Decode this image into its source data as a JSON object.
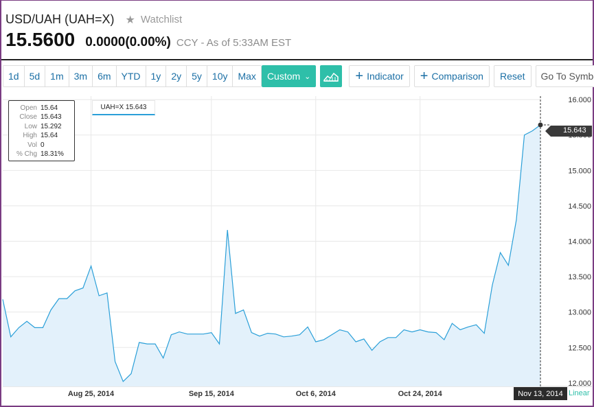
{
  "header": {
    "symbol_title": "USD/UAH (UAH=X)",
    "watchlist_label": "Watchlist",
    "price": "15.5600",
    "change": "0.0000",
    "change_pct": "(0.00%)",
    "asof": "CCY - As of 5:33AM EST",
    "star_icon": "star-icon"
  },
  "toolbar": {
    "ranges": [
      "1d",
      "5d",
      "1m",
      "3m",
      "6m",
      "YTD",
      "1y",
      "2y",
      "5y",
      "10y",
      "Max"
    ],
    "custom_label": "Custom",
    "indicator_label": "Indicator",
    "comparison_label": "Comparison",
    "reset_label": "Reset",
    "symbol_placeholder": "Go To Symbol",
    "chart_type_icon": "mountain-chart-icon",
    "go_icon": "arrow-right-icon",
    "accent": "#2ebfa9"
  },
  "tooltip": {
    "rows": [
      {
        "label": "Open",
        "value": "15.64"
      },
      {
        "label": "Close",
        "value": "15.643"
      },
      {
        "label": "Low",
        "value": "15.292"
      },
      {
        "label": "High",
        "value": "15.64"
      },
      {
        "label": "Vol",
        "value": "0"
      },
      {
        "label": "% Chg",
        "value": "18.31%"
      }
    ]
  },
  "legend_tag": "UAH=X 15.643",
  "crosshair": {
    "date": "Nov 13, 2014",
    "price": "15.643"
  },
  "scale_label": "Linear",
  "chart_data": {
    "type": "area",
    "series": [
      {
        "color": "#2a9fd8",
        "fill": "#e3f1fb",
        "values": [
          13.18,
          12.65,
          12.78,
          12.87,
          12.78,
          12.78,
          13.03,
          13.19,
          13.19,
          13.3,
          13.34,
          13.65,
          13.23,
          13.27,
          12.3,
          12.02,
          12.13,
          12.57,
          12.55,
          12.55,
          12.35,
          12.68,
          12.72,
          12.69,
          12.69,
          12.69,
          12.71,
          12.55,
          14.16,
          12.98,
          13.03,
          12.71,
          12.66,
          12.7,
          12.69,
          12.65,
          12.66,
          12.68,
          12.79,
          12.58,
          12.61,
          12.68,
          12.75,
          12.72,
          12.58,
          12.62,
          12.46,
          12.58,
          12.64,
          12.64,
          12.75,
          12.72,
          12.75,
          12.72,
          12.71,
          12.61,
          12.84,
          12.75,
          12.79,
          12.82,
          12.7,
          13.38,
          13.84,
          13.66,
          14.3,
          15.5,
          15.56,
          15.643
        ]
      }
    ],
    "x_tick_labels": [
      "Aug 25, 2014",
      "Sep 15, 2014",
      "Oct 6, 2014",
      "Oct 24, 2014"
    ],
    "x_tick_indices": [
      11,
      26,
      39,
      52
    ],
    "y_ticks": [
      12.0,
      12.5,
      13.0,
      13.5,
      14.0,
      14.5,
      15.0,
      15.5,
      16.0
    ],
    "y_tick_labels": [
      "12.000",
      "12.500",
      "13.000",
      "13.500",
      "14.000",
      "14.500",
      "15.000",
      "15.500",
      "16.000"
    ],
    "ylim": [
      11.95,
      16.05
    ],
    "grid": true,
    "axis_side": "right"
  }
}
